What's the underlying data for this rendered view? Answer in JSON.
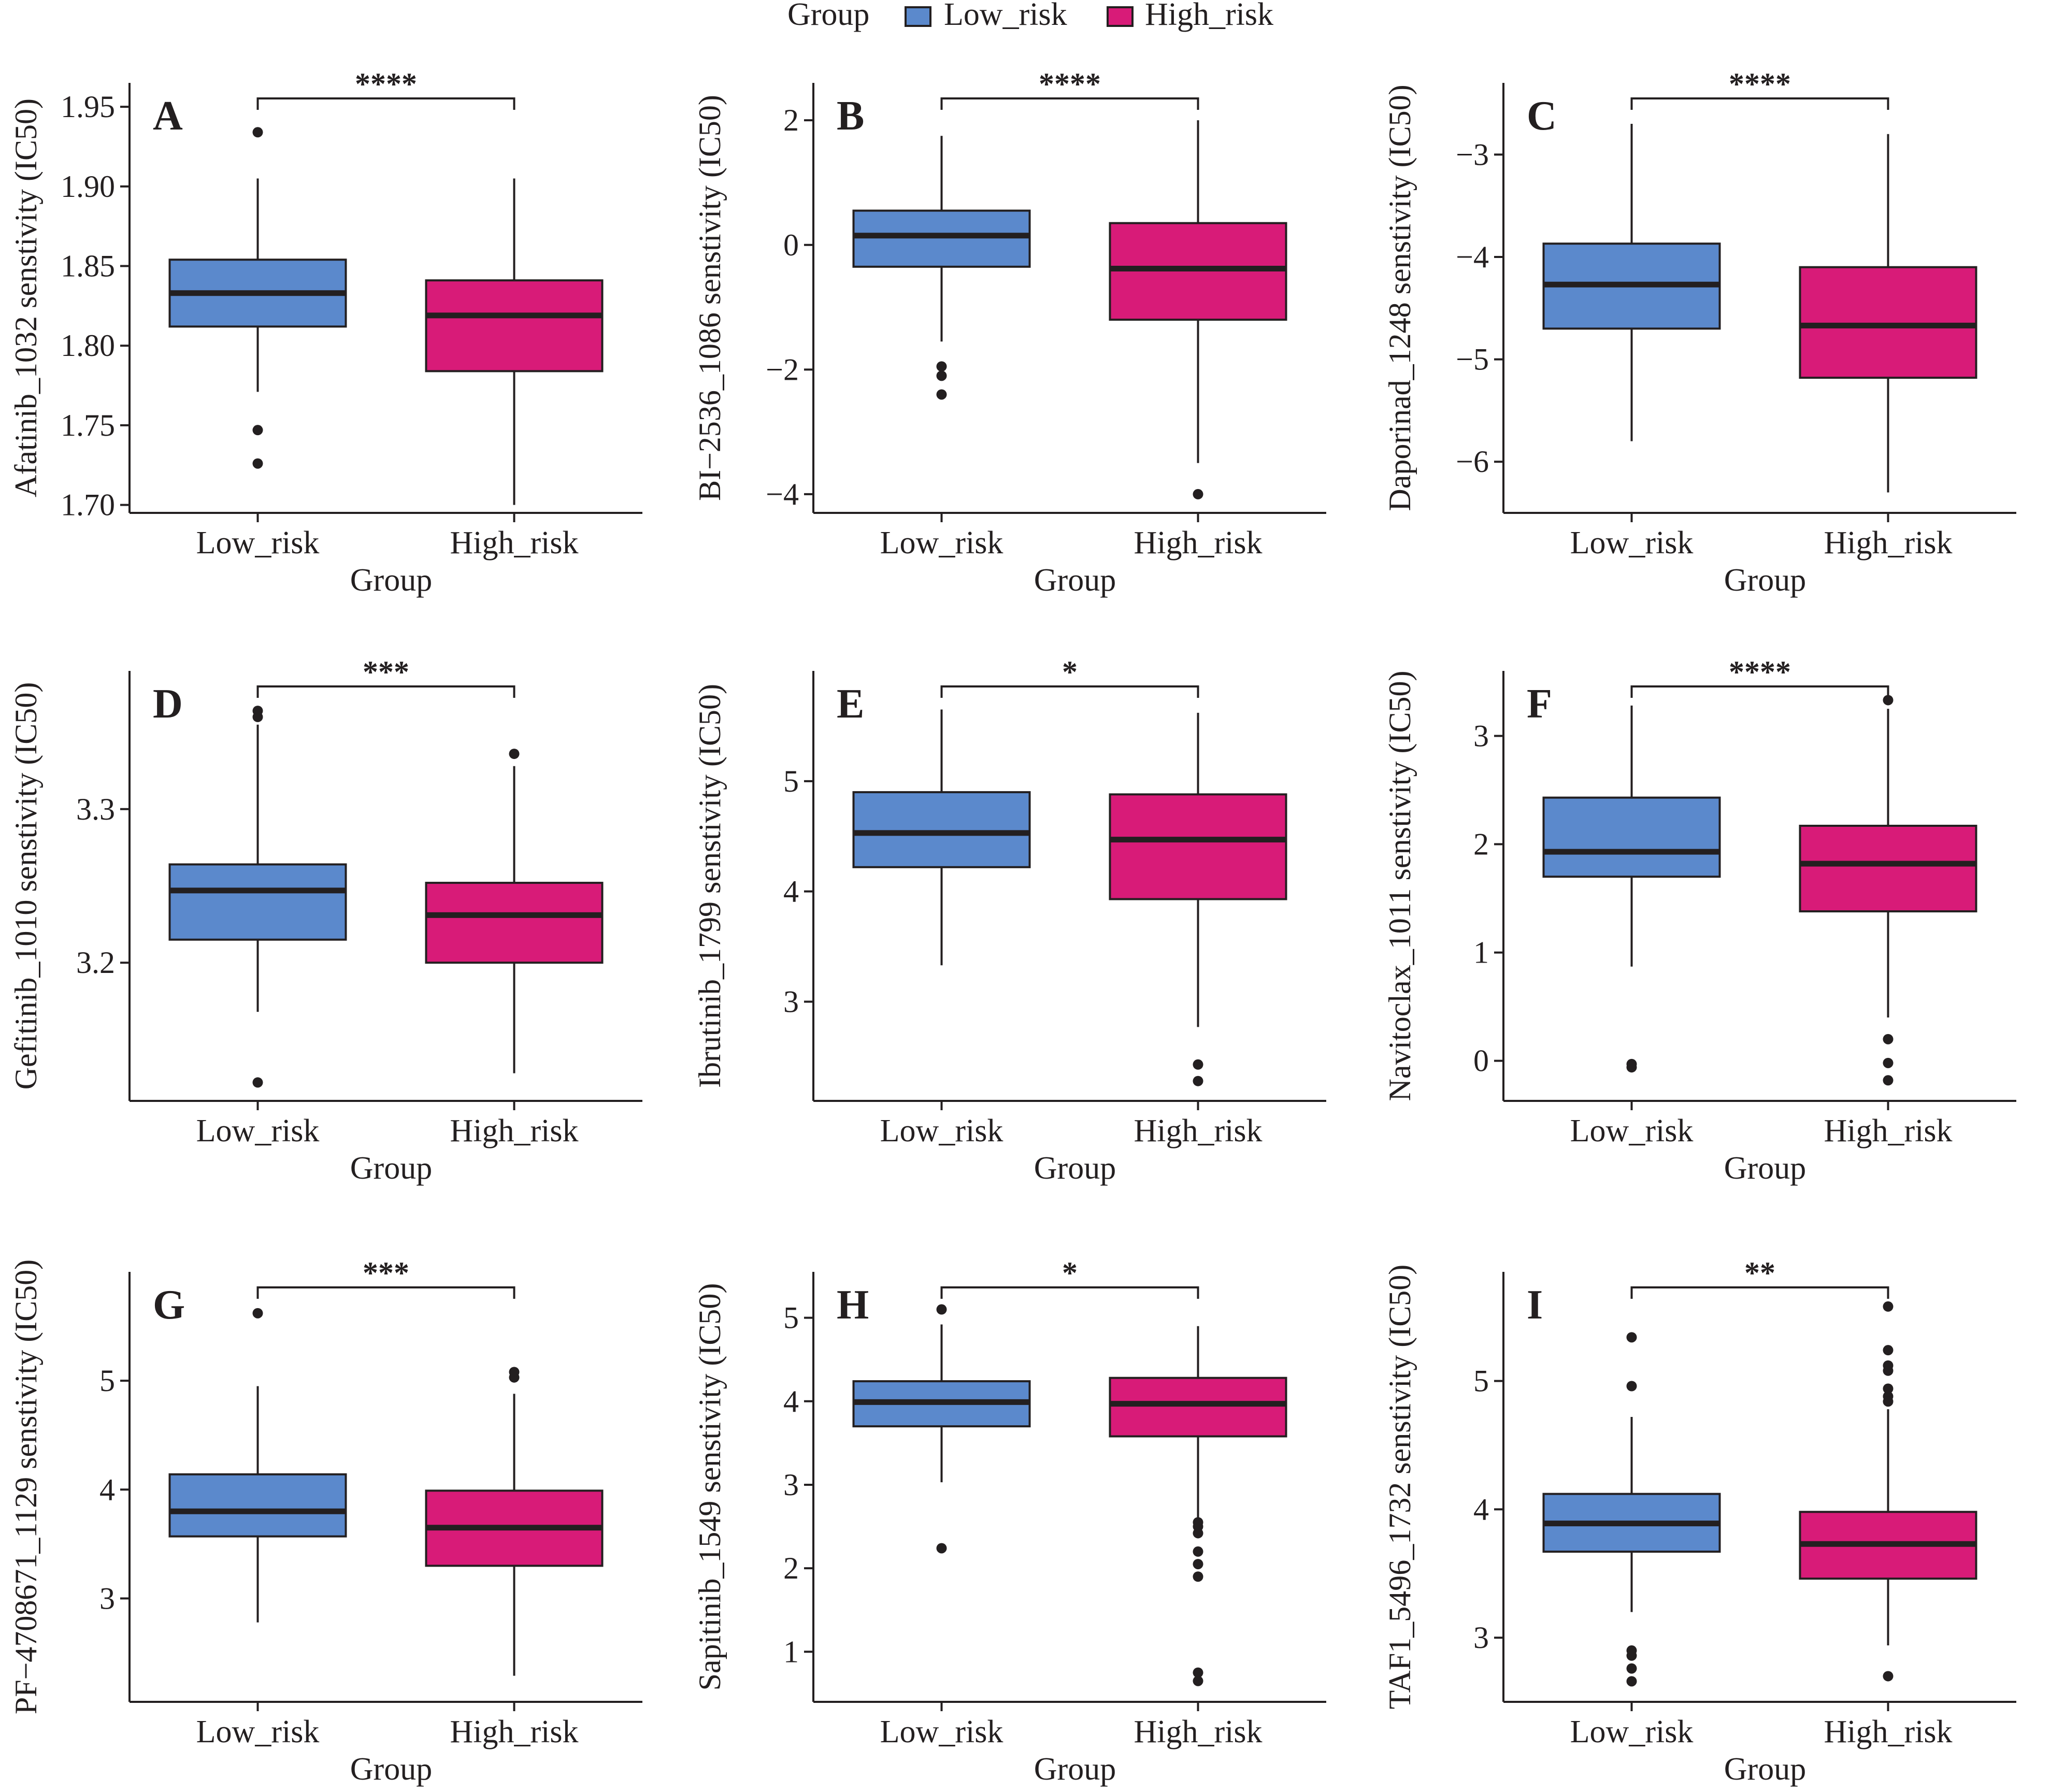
{
  "legend": {
    "title": "Group",
    "items": [
      {
        "label": "Low_risk",
        "color": "#5b89cc"
      },
      {
        "label": "High_risk",
        "color": "#d81b78"
      }
    ]
  },
  "colors": {
    "low_risk": "#5b89cc",
    "high_risk": "#d81b78",
    "axis": "#231f20"
  },
  "chart_data": [
    {
      "panel": "A",
      "type": "box",
      "ylabel": "Afatinib_1032 senstivity (IC50)",
      "xlabel": "Group",
      "categories": [
        "Low_risk",
        "High_risk"
      ],
      "ylim": [
        1.695,
        1.965
      ],
      "yticks": [
        1.7,
        1.75,
        1.8,
        1.85,
        1.9,
        1.95
      ],
      "yticklabels": [
        "1.70",
        "1.75",
        "1.80",
        "1.85",
        "1.90",
        "1.95"
      ],
      "significance": "****",
      "boxes": [
        {
          "group": "Low_risk",
          "q1": 1.812,
          "median": 1.833,
          "q3": 1.854,
          "whisker_low": 1.771,
          "whisker_high": 1.905,
          "outliers": [
            1.934,
            1.747,
            1.726
          ]
        },
        {
          "group": "High_risk",
          "q1": 1.784,
          "median": 1.819,
          "q3": 1.841,
          "whisker_low": 1.7,
          "whisker_high": 1.905,
          "outliers": []
        }
      ]
    },
    {
      "panel": "B",
      "type": "box",
      "ylabel": "BI−2536_1086 senstivity (IC50)",
      "xlabel": "Group",
      "categories": [
        "Low_risk",
        "High_risk"
      ],
      "ylim": [
        -4.3,
        2.6
      ],
      "yticks": [
        -4,
        -2,
        0,
        2
      ],
      "yticklabels": [
        "−4",
        "−2",
        "0",
        "2"
      ],
      "significance": "****",
      "boxes": [
        {
          "group": "Low_risk",
          "q1": -0.35,
          "median": 0.15,
          "q3": 0.55,
          "whisker_low": -1.55,
          "whisker_high": 1.75,
          "outliers": [
            -1.95,
            -2.1,
            -2.4
          ]
        },
        {
          "group": "High_risk",
          "q1": -1.2,
          "median": -0.38,
          "q3": 0.35,
          "whisker_low": -3.5,
          "whisker_high": 2.0,
          "outliers": [
            -4.0
          ]
        }
      ]
    },
    {
      "panel": "C",
      "type": "box",
      "ylabel": "Daporinad_1248 senstivity (IC50)",
      "xlabel": "Group",
      "categories": [
        "Low_risk",
        "High_risk"
      ],
      "ylim": [
        -6.5,
        -2.3
      ],
      "yticks": [
        -6,
        -5,
        -4,
        -3
      ],
      "yticklabels": [
        "−6",
        "−5",
        "−4",
        "−3"
      ],
      "significance": "****",
      "boxes": [
        {
          "group": "Low_risk",
          "q1": -4.7,
          "median": -4.27,
          "q3": -3.87,
          "whisker_low": -5.8,
          "whisker_high": -2.7,
          "outliers": []
        },
        {
          "group": "High_risk",
          "q1": -5.18,
          "median": -4.67,
          "q3": -4.1,
          "whisker_low": -6.3,
          "whisker_high": -2.8,
          "outliers": []
        }
      ]
    },
    {
      "panel": "D",
      "type": "box",
      "ylabel": "Gefitinib_1010 senstivity (IC50)",
      "xlabel": "Group",
      "categories": [
        "Low_risk",
        "High_risk"
      ],
      "ylim": [
        3.11,
        3.39
      ],
      "yticks": [
        3.2,
        3.3
      ],
      "yticklabels": [
        "3.2",
        "3.3"
      ],
      "significance": "***",
      "boxes": [
        {
          "group": "Low_risk",
          "q1": 3.215,
          "median": 3.247,
          "q3": 3.264,
          "whisker_low": 3.168,
          "whisker_high": 3.355,
          "outliers": [
            3.364,
            3.36,
            3.122
          ]
        },
        {
          "group": "High_risk",
          "q1": 3.2,
          "median": 3.231,
          "q3": 3.252,
          "whisker_low": 3.128,
          "whisker_high": 3.328,
          "outliers": [
            3.336
          ]
        }
      ]
    },
    {
      "panel": "E",
      "type": "box",
      "ylabel": "Ibrutinib_1799 senstivity (IC50)",
      "xlabel": "Group",
      "categories": [
        "Low_risk",
        "High_risk"
      ],
      "ylim": [
        2.1,
        6.0
      ],
      "yticks": [
        3,
        4,
        5
      ],
      "yticklabels": [
        "3",
        "4",
        "5"
      ],
      "significance": "*",
      "boxes": [
        {
          "group": "Low_risk",
          "q1": 4.22,
          "median": 4.53,
          "q3": 4.9,
          "whisker_low": 3.33,
          "whisker_high": 5.65,
          "outliers": []
        },
        {
          "group": "High_risk",
          "q1": 3.93,
          "median": 4.47,
          "q3": 4.88,
          "whisker_low": 2.77,
          "whisker_high": 5.62,
          "outliers": [
            2.43,
            2.28
          ]
        }
      ]
    },
    {
      "panel": "F",
      "type": "box",
      "ylabel": "Navitoclax_1011 senstivity (IC50)",
      "xlabel": "Group",
      "categories": [
        "Low_risk",
        "High_risk"
      ],
      "ylim": [
        -0.37,
        3.6
      ],
      "yticks": [
        0,
        1,
        2,
        3
      ],
      "yticklabels": [
        "0",
        "1",
        "2",
        "3"
      ],
      "significance": "****",
      "boxes": [
        {
          "group": "Low_risk",
          "q1": 1.7,
          "median": 1.93,
          "q3": 2.43,
          "whisker_low": 0.87,
          "whisker_high": 3.28,
          "outliers": [
            -0.03,
            -0.06
          ]
        },
        {
          "group": "High_risk",
          "q1": 1.38,
          "median": 1.82,
          "q3": 2.17,
          "whisker_low": 0.4,
          "whisker_high": 3.25,
          "outliers": [
            3.33,
            0.2,
            -0.02,
            -0.18
          ]
        }
      ]
    },
    {
      "panel": "G",
      "type": "box",
      "ylabel": "PF−4708671_1129 senstivity (IC50)",
      "xlabel": "Group",
      "categories": [
        "Low_risk",
        "High_risk"
      ],
      "ylim": [
        2.05,
        6.0
      ],
      "yticks": [
        3,
        4,
        5
      ],
      "yticklabels": [
        "3",
        "4",
        "5"
      ],
      "significance": "***",
      "boxes": [
        {
          "group": "Low_risk",
          "q1": 3.57,
          "median": 3.8,
          "q3": 4.14,
          "whisker_low": 2.78,
          "whisker_high": 4.95,
          "outliers": [
            5.62
          ]
        },
        {
          "group": "High_risk",
          "q1": 3.3,
          "median": 3.65,
          "q3": 3.99,
          "whisker_low": 2.29,
          "whisker_high": 4.88,
          "outliers": [
            5.08,
            5.03
          ]
        }
      ]
    },
    {
      "panel": "H",
      "type": "box",
      "ylabel": "Sapitinib_1549 senstivity (IC50)",
      "xlabel": "Group",
      "categories": [
        "Low_risk",
        "High_risk"
      ],
      "ylim": [
        0.4,
        5.55
      ],
      "yticks": [
        1,
        2,
        3,
        4,
        5
      ],
      "yticklabels": [
        "1",
        "2",
        "3",
        "4",
        "5"
      ],
      "significance": "*",
      "boxes": [
        {
          "group": "Low_risk",
          "q1": 3.7,
          "median": 3.99,
          "q3": 4.24,
          "whisker_low": 3.03,
          "whisker_high": 4.92,
          "outliers": [
            5.1,
            2.24
          ]
        },
        {
          "group": "High_risk",
          "q1": 3.58,
          "median": 3.97,
          "q3": 4.28,
          "whisker_low": 2.6,
          "whisker_high": 4.9,
          "outliers": [
            2.55,
            2.5,
            2.42,
            2.2,
            2.05,
            1.9,
            0.75,
            0.65
          ]
        }
      ]
    },
    {
      "panel": "I",
      "type": "box",
      "ylabel": "TAF1_5496_1732 senstivity (IC50)",
      "xlabel": "Group",
      "categories": [
        "Low_risk",
        "High_risk"
      ],
      "ylim": [
        2.5,
        5.85
      ],
      "yticks": [
        3,
        4,
        5
      ],
      "yticklabels": [
        "3",
        "4",
        "5"
      ],
      "significance": "**",
      "boxes": [
        {
          "group": "Low_risk",
          "q1": 3.67,
          "median": 3.89,
          "q3": 4.12,
          "whisker_low": 3.2,
          "whisker_high": 4.72,
          "outliers": [
            5.34,
            4.96,
            2.9,
            2.86,
            2.76,
            2.66
          ]
        },
        {
          "group": "High_risk",
          "q1": 3.46,
          "median": 3.73,
          "q3": 3.98,
          "whisker_low": 2.94,
          "whisker_high": 4.78,
          "outliers": [
            5.58,
            5.24,
            5.12,
            5.08,
            4.94,
            4.88,
            4.84,
            2.7
          ]
        }
      ]
    }
  ]
}
